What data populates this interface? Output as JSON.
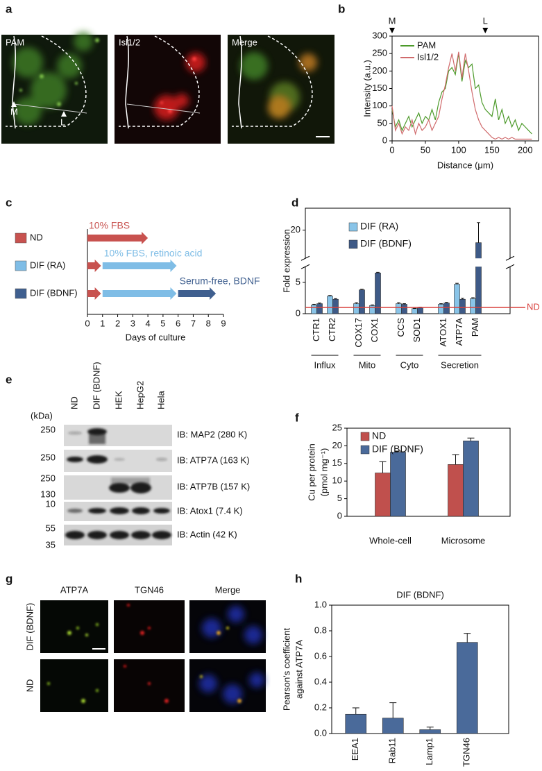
{
  "figure": {
    "panel_a": {
      "label": "a",
      "titles": [
        "PAM",
        "Isl1/2",
        "Merge"
      ],
      "markers": [
        "M",
        "L"
      ]
    },
    "panel_e": {
      "label": "e",
      "unit": "(kDa)",
      "lanes": [
        "ND",
        "DIF (BDNF)",
        "HEK",
        "HepG2",
        "Hela"
      ],
      "blots": [
        {
          "markers": [
            250
          ],
          "label": "IB: MAP2 (280 K)"
        },
        {
          "markers": [
            250
          ],
          "label": "IB: ATP7A (163 K)"
        },
        {
          "markers": [
            250,
            130
          ],
          "label": "IB: ATP7B (157 K)"
        },
        {
          "markers": [
            10
          ],
          "label": "IB: Atox1 (7.4 K)"
        },
        {
          "markers": [
            55,
            35
          ],
          "label": "IB: Actin (42 K)"
        }
      ]
    },
    "panel_g": {
      "label": "g",
      "columns": [
        "ATP7A",
        "TGN46",
        "Merge"
      ],
      "rows": [
        "DIF (BDNF)",
        "ND"
      ]
    }
  },
  "chart_data": [
    {
      "type": "line",
      "label": "b",
      "xlabel": "Distance (μm)",
      "ylabel": "Intensity (a.u.)",
      "x": [
        0,
        5,
        10,
        15,
        20,
        25,
        30,
        35,
        40,
        45,
        50,
        55,
        60,
        65,
        70,
        75,
        80,
        85,
        90,
        95,
        100,
        105,
        110,
        115,
        120,
        125,
        130,
        135,
        140,
        145,
        150,
        155,
        160,
        165,
        170,
        175,
        180,
        185,
        190,
        195,
        200,
        205,
        210
      ],
      "series": [
        {
          "name": "PAM",
          "color": "#4c9a2a",
          "values": [
            90,
            40,
            60,
            30,
            50,
            70,
            40,
            60,
            80,
            50,
            70,
            60,
            90,
            60,
            110,
            140,
            150,
            200,
            210,
            190,
            250,
            170,
            230,
            210,
            220,
            150,
            160,
            110,
            90,
            80,
            70,
            120,
            60,
            90,
            50,
            70,
            40,
            60,
            30,
            50,
            40,
            30,
            20
          ]
        },
        {
          "name": "Isl1/2",
          "color": "#d06a6c",
          "values": [
            100,
            30,
            50,
            20,
            40,
            30,
            60,
            20,
            50,
            30,
            40,
            60,
            30,
            50,
            70,
            120,
            160,
            210,
            250,
            200,
            255,
            180,
            250,
            200,
            140,
            90,
            60,
            40,
            30,
            20,
            10,
            5,
            10,
            5,
            10,
            5,
            10,
            5,
            5,
            5,
            5,
            5,
            5
          ]
        }
      ],
      "markers": [
        {
          "label": "M",
          "x": 0
        },
        {
          "label": "L",
          "x": 140
        }
      ],
      "xlim": [
        0,
        220
      ],
      "xticks": [
        0,
        50,
        100,
        150,
        200
      ],
      "ylim": [
        0,
        300
      ],
      "yticks": [
        0,
        50,
        100,
        150,
        200,
        250,
        300
      ],
      "legend": "upper left"
    },
    {
      "type": "timeline",
      "label": "c",
      "xlabel": "Days of culture",
      "xlim": [
        0,
        9
      ],
      "xticks": [
        0,
        1,
        2,
        3,
        4,
        5,
        6,
        7,
        8,
        9
      ],
      "rows": [
        {
          "name": "ND",
          "color": "#c8524f",
          "segments": [
            {
              "start": 0,
              "end": 4,
              "color": "#c8524f",
              "label": "10% FBS"
            }
          ]
        },
        {
          "name": "DIF (RA)",
          "color": "#7fbde6",
          "segments": [
            {
              "start": 0,
              "end": 0.9,
              "color": "#c8524f"
            },
            {
              "start": 1,
              "end": 5.9,
              "color": "#7fbde6",
              "label": "10% FBS, retinoic acid"
            }
          ]
        },
        {
          "name": "DIF (BDNF)",
          "color": "#3f5f8f",
          "segments": [
            {
              "start": 0,
              "end": 0.9,
              "color": "#c8524f"
            },
            {
              "start": 1,
              "end": 5.9,
              "color": "#7fbde6"
            },
            {
              "start": 6,
              "end": 8.5,
              "color": "#3f5f8f",
              "label": "Serum-free, BDNF"
            }
          ]
        }
      ]
    },
    {
      "type": "bar",
      "label": "d",
      "ylabel": "Fold expression",
      "categories": [
        "CTR1",
        "CTR2",
        "COX17",
        "COX1",
        "CCS",
        "SOD1",
        "ATOX1",
        "ATP7A",
        "PAM"
      ],
      "groups": [
        {
          "name": "Influx",
          "size": 2
        },
        {
          "name": "Mito",
          "size": 2
        },
        {
          "name": "Cyto",
          "size": 2
        },
        {
          "name": "Secretion",
          "size": 3
        }
      ],
      "series": [
        {
          "name": "DIF (RA)",
          "color": "#89c4e8",
          "values": [
            1.4,
            2.8,
            1.6,
            1.3,
            1.6,
            0.8,
            1.5,
            4.7,
            2.4
          ],
          "errors": [
            0.1,
            0.1,
            0.15,
            0.1,
            0.15,
            0.05,
            0.1,
            0.15,
            0.15
          ]
        },
        {
          "name": "DIF (BDNF)",
          "color": "#3e5a87",
          "values": [
            1.6,
            2.3,
            3.8,
            6.5,
            1.5,
            1.0,
            1.7,
            2.3,
            18
          ],
          "errors": [
            0.1,
            0.1,
            0.1,
            0.1,
            0.1,
            0.05,
            0.1,
            0.15,
            3.2
          ]
        }
      ],
      "reference": {
        "value": 1,
        "label": "ND",
        "color": "#d9413d"
      },
      "ylim": [
        0,
        23.5
      ],
      "axis_break": [
        7.5,
        15.5
      ],
      "yticks": [
        0,
        5,
        20
      ],
      "legend": "upper left"
    },
    {
      "type": "bar",
      "label": "f",
      "ylabel": [
        "Cu per protein",
        "(pmol mg⁻¹)"
      ],
      "categories": [
        "Whole-cell",
        "Microsome"
      ],
      "series": [
        {
          "name": "ND",
          "color": "#c0504d",
          "values": [
            12.3,
            14.7
          ],
          "errors": [
            3.2,
            2.8
          ]
        },
        {
          "name": "DIF (BDNF)",
          "color": "#4a6a9a",
          "values": [
            18.2,
            21.4
          ],
          "errors": [
            0.3,
            0.8
          ]
        }
      ],
      "ylim": [
        0,
        25
      ],
      "yticks": [
        0,
        5,
        10,
        15,
        20,
        25
      ],
      "legend": "upper left"
    },
    {
      "type": "bar",
      "label": "h",
      "title": "DIF (BDNF)",
      "ylabel": [
        "Pearson's coefficient",
        "against ATP7A"
      ],
      "categories": [
        "EEA1",
        "Rab11",
        "Lamp1",
        "TGN46"
      ],
      "color": "#4a6a9a",
      "values": [
        0.15,
        0.12,
        0.03,
        0.71
      ],
      "errors": [
        0.05,
        0.12,
        0.02,
        0.07
      ],
      "ylim": [
        0,
        1
      ],
      "yticks": [
        {
          "value": 0,
          "label": "0.0"
        },
        0.2,
        0.4,
        0.6,
        0.8,
        {
          "value": 1,
          "label": "1.0"
        }
      ]
    }
  ]
}
